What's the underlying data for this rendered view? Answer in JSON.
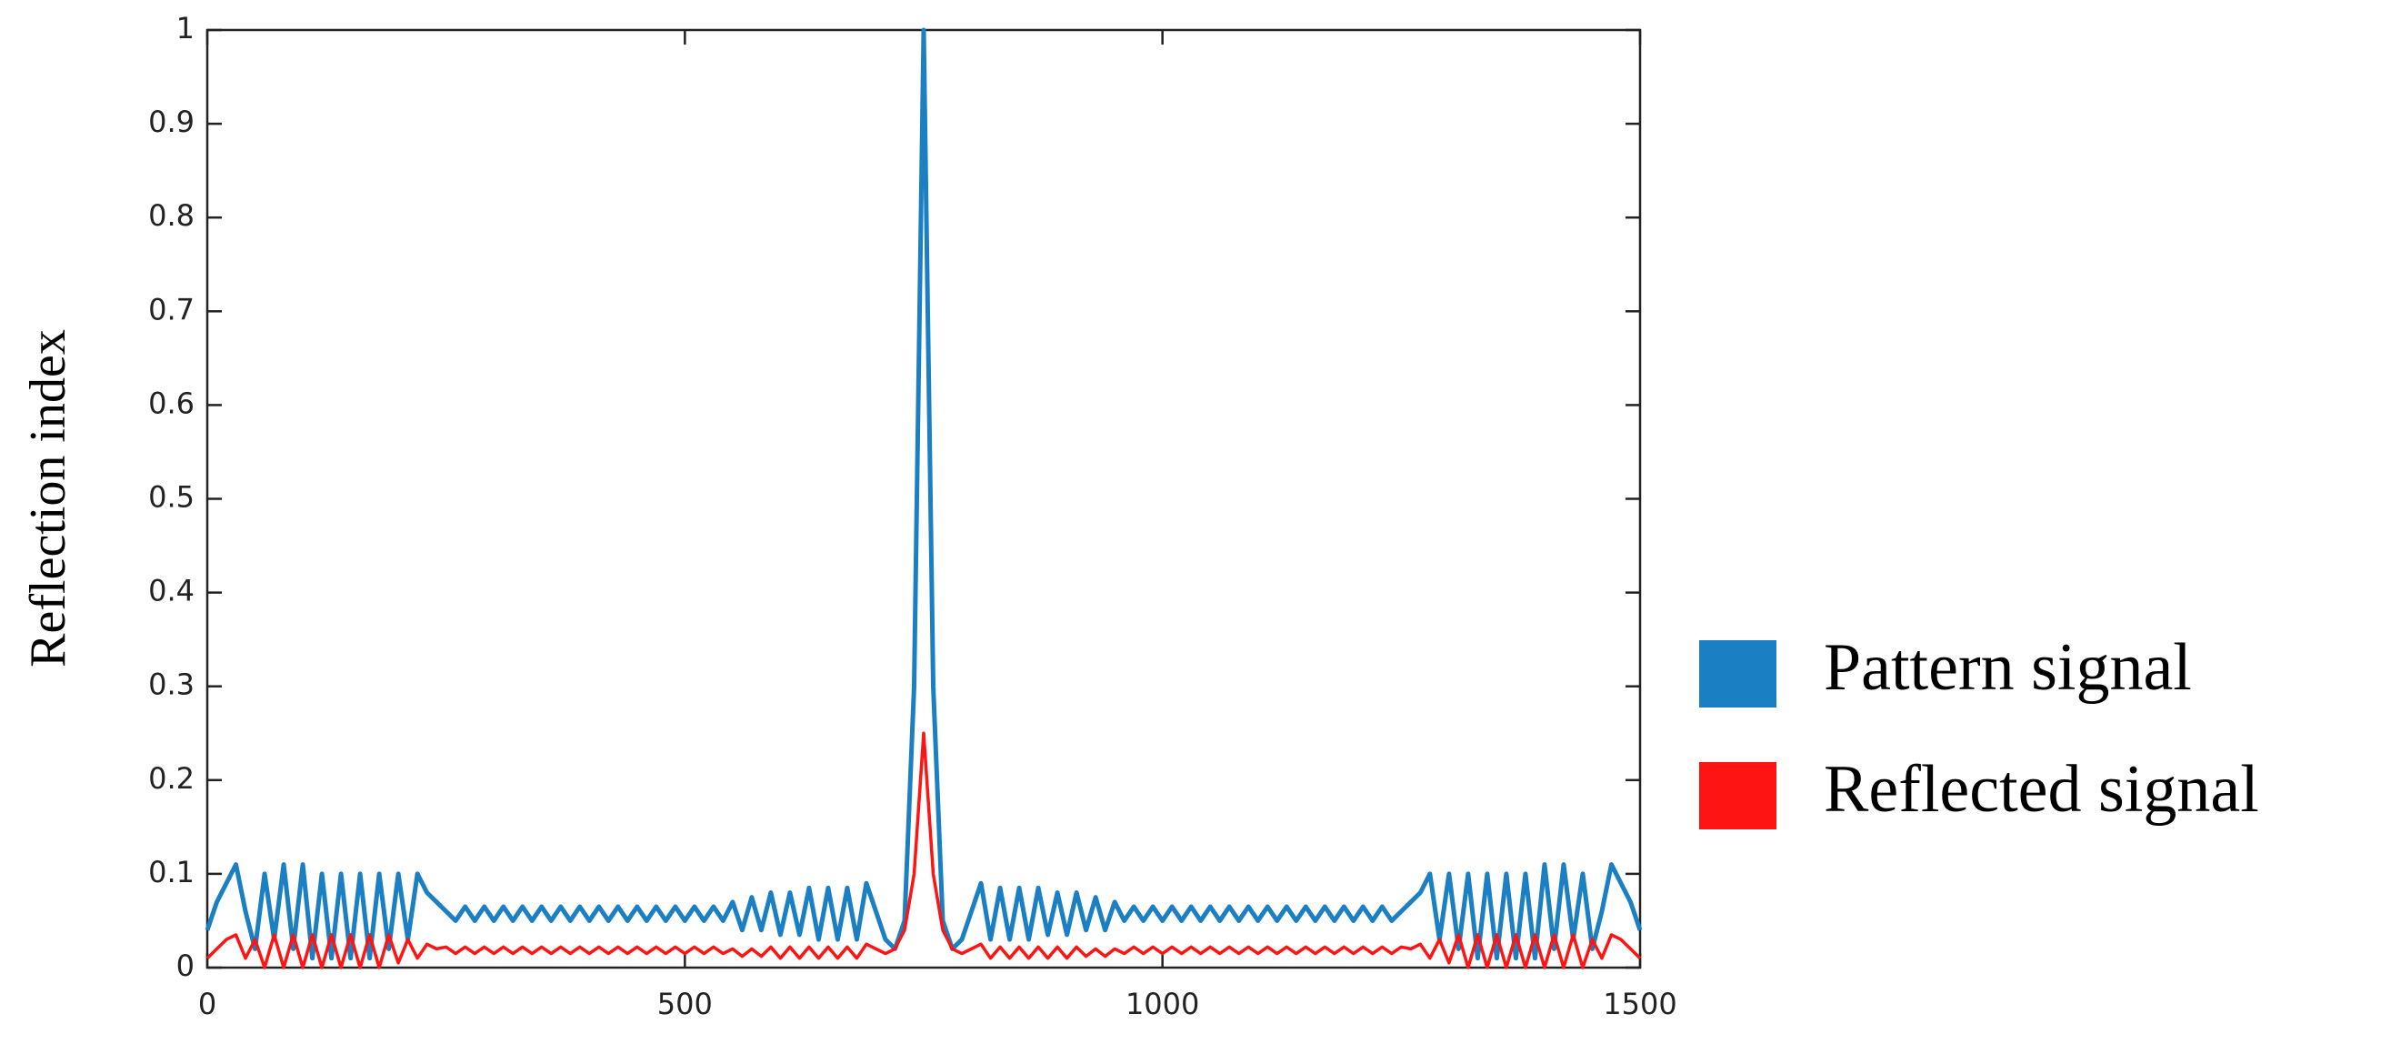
{
  "chart_data": {
    "type": "line",
    "y_label": "Reflection index",
    "x": [
      0,
      10,
      20,
      30,
      40,
      50,
      60,
      70,
      80,
      90,
      100,
      110,
      120,
      130,
      140,
      150,
      160,
      170,
      180,
      190,
      200,
      210,
      220,
      230,
      240,
      250,
      260,
      270,
      280,
      290,
      300,
      310,
      320,
      330,
      340,
      350,
      360,
      370,
      380,
      390,
      400,
      410,
      420,
      430,
      440,
      450,
      460,
      470,
      480,
      490,
      500,
      510,
      520,
      530,
      540,
      550,
      560,
      570,
      580,
      590,
      600,
      610,
      620,
      630,
      640,
      650,
      660,
      670,
      680,
      690,
      700,
      710,
      720,
      730,
      740,
      750,
      760,
      770,
      780,
      790,
      800,
      810,
      820,
      830,
      840,
      850,
      860,
      870,
      880,
      890,
      900,
      910,
      920,
      930,
      940,
      950,
      960,
      970,
      980,
      990,
      1000,
      1010,
      1020,
      1030,
      1040,
      1050,
      1060,
      1070,
      1080,
      1090,
      1100,
      1110,
      1120,
      1130,
      1140,
      1150,
      1160,
      1170,
      1180,
      1190,
      1200,
      1210,
      1220,
      1230,
      1240,
      1250,
      1260,
      1270,
      1280,
      1290,
      1300,
      1310,
      1320,
      1330,
      1340,
      1350,
      1360,
      1370,
      1380,
      1390,
      1400,
      1410,
      1420,
      1430,
      1440,
      1450,
      1460,
      1470,
      1480,
      1490,
      1500
    ],
    "series": [
      {
        "name": "Pattern signal",
        "color": "#1b7fc4",
        "values": [
          0.04,
          0.07,
          0.09,
          0.11,
          0.06,
          0.02,
          0.1,
          0.03,
          0.11,
          0.02,
          0.11,
          0.01,
          0.1,
          0.01,
          0.1,
          0.01,
          0.1,
          0.01,
          0.1,
          0.02,
          0.1,
          0.03,
          0.1,
          0.08,
          0.07,
          0.06,
          0.05,
          0.065,
          0.05,
          0.065,
          0.05,
          0.065,
          0.05,
          0.065,
          0.05,
          0.065,
          0.05,
          0.065,
          0.05,
          0.065,
          0.05,
          0.065,
          0.05,
          0.065,
          0.05,
          0.065,
          0.05,
          0.065,
          0.05,
          0.065,
          0.05,
          0.065,
          0.05,
          0.065,
          0.05,
          0.07,
          0.04,
          0.075,
          0.04,
          0.08,
          0.035,
          0.08,
          0.035,
          0.085,
          0.03,
          0.085,
          0.03,
          0.085,
          0.03,
          0.09,
          0.06,
          0.03,
          0.02,
          0.05,
          0.3,
          1,
          0.3,
          0.05,
          0.02,
          0.03,
          0.06,
          0.09,
          0.03,
          0.085,
          0.03,
          0.085,
          0.03,
          0.085,
          0.035,
          0.08,
          0.035,
          0.08,
          0.04,
          0.075,
          0.04,
          0.07,
          0.05,
          0.065,
          0.05,
          0.065,
          0.05,
          0.065,
          0.05,
          0.065,
          0.05,
          0.065,
          0.05,
          0.065,
          0.05,
          0.065,
          0.05,
          0.065,
          0.05,
          0.065,
          0.05,
          0.065,
          0.05,
          0.065,
          0.05,
          0.065,
          0.05,
          0.065,
          0.05,
          0.065,
          0.05,
          0.06,
          0.07,
          0.08,
          0.1,
          0.03,
          0.1,
          0.02,
          0.1,
          0.01,
          0.1,
          0.01,
          0.1,
          0.01,
          0.1,
          0.01,
          0.11,
          0.02,
          0.11,
          0.03,
          0.1,
          0.02,
          0.06,
          0.11,
          0.09,
          0.07,
          0.04
        ]
      },
      {
        "name": "Reflected signal",
        "color": "#ff1414",
        "values": [
          0.01,
          0.02,
          0.03,
          0.035,
          0.01,
          0.03,
          0,
          0.035,
          0,
          0.035,
          0,
          0.035,
          0,
          0.035,
          0,
          0.035,
          0,
          0.035,
          0,
          0.035,
          0.005,
          0.03,
          0.01,
          0.025,
          0.02,
          0.022,
          0.015,
          0.022,
          0.015,
          0.022,
          0.015,
          0.022,
          0.015,
          0.022,
          0.015,
          0.022,
          0.015,
          0.022,
          0.015,
          0.022,
          0.015,
          0.022,
          0.015,
          0.022,
          0.015,
          0.022,
          0.015,
          0.022,
          0.015,
          0.022,
          0.015,
          0.022,
          0.015,
          0.022,
          0.015,
          0.02,
          0.012,
          0.02,
          0.012,
          0.022,
          0.01,
          0.022,
          0.01,
          0.022,
          0.01,
          0.022,
          0.01,
          0.022,
          0.01,
          0.025,
          0.02,
          0.015,
          0.02,
          0.04,
          0.1,
          0.25,
          0.1,
          0.04,
          0.02,
          0.015,
          0.02,
          0.025,
          0.01,
          0.022,
          0.01,
          0.022,
          0.01,
          0.022,
          0.01,
          0.022,
          0.01,
          0.022,
          0.012,
          0.02,
          0.012,
          0.02,
          0.015,
          0.022,
          0.015,
          0.022,
          0.015,
          0.022,
          0.015,
          0.022,
          0.015,
          0.022,
          0.015,
          0.022,
          0.015,
          0.022,
          0.015,
          0.022,
          0.015,
          0.022,
          0.015,
          0.022,
          0.015,
          0.022,
          0.015,
          0.022,
          0.015,
          0.022,
          0.015,
          0.022,
          0.015,
          0.022,
          0.02,
          0.025,
          0.01,
          0.03,
          0.005,
          0.035,
          0,
          0.035,
          0,
          0.035,
          0,
          0.035,
          0,
          0.035,
          0,
          0.035,
          0,
          0.035,
          0,
          0.03,
          0.01,
          0.035,
          0.03,
          0.02,
          0.01
        ]
      }
    ],
    "xlim": [
      0,
      1500
    ],
    "xticks": [
      0,
      500,
      1000,
      1500
    ],
    "ylim": [
      0,
      1
    ],
    "yticks": [
      0,
      0.1,
      0.2,
      0.3,
      0.4,
      0.5,
      0.6,
      0.7,
      0.8,
      0.9,
      1
    ],
    "grid": false,
    "legend": "right"
  }
}
